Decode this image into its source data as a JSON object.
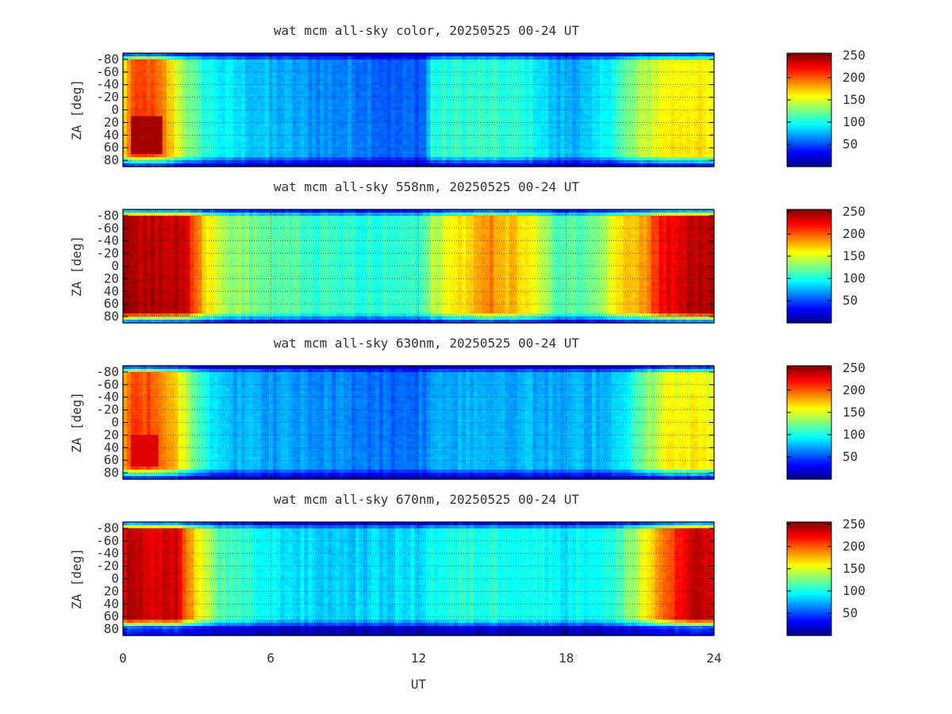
{
  "chart_data": [
    {
      "type": "heatmap",
      "title": "wat mcm all-sky color, 20250525 00-24 UT",
      "ylabel": "ZA [deg]",
      "xlim": [
        0,
        24
      ],
      "ylim": [
        -90,
        90
      ],
      "yticks": [
        "-80",
        "-60",
        "-40",
        "-20",
        "0",
        "20",
        "40",
        "60",
        "80"
      ],
      "grid": true,
      "colorbar": {
        "range": [
          0,
          255
        ],
        "ticks": [
          "50",
          "100",
          "150",
          "200",
          "250"
        ],
        "colormap": "jet"
      },
      "profile": {
        "ut": [
          0,
          0.3,
          1,
          1.7,
          2.3,
          3,
          4,
          6,
          8,
          10,
          11,
          12.3,
          12.5,
          13.5,
          15,
          16.5,
          17.5,
          19,
          20,
          21,
          22,
          23,
          24
        ],
        "intensity": [
          160,
          205,
          215,
          190,
          150,
          115,
          95,
          80,
          70,
          65,
          55,
          60,
          105,
          110,
          110,
          105,
          80,
          80,
          110,
          140,
          165,
          170,
          160
        ]
      },
      "za_profile": [
        {
          "za": -90,
          "factor": 0.12
        },
        {
          "za": -85,
          "factor": 0.45
        },
        {
          "za": -78,
          "factor": 0.95
        },
        {
          "za": 72,
          "factor": 1.0
        },
        {
          "za": 80,
          "factor": 0.6
        },
        {
          "za": 90,
          "factor": 0.12
        }
      ],
      "hotspot": {
        "ut_range": [
          0.3,
          1.6
        ],
        "za_range": [
          10,
          72
        ],
        "intensity": 245
      }
    },
    {
      "type": "heatmap",
      "title": "wat mcm all-sky 558nm, 20250525 00-24 UT",
      "ylabel": "ZA [deg]",
      "xlim": [
        0,
        24
      ],
      "ylim": [
        -90,
        90
      ],
      "yticks": [
        "-80",
        "-60",
        "-40",
        "-20",
        "0",
        "20",
        "40",
        "60",
        "80"
      ],
      "grid": true,
      "colorbar": {
        "range": [
          0,
          255
        ],
        "ticks": [
          "50",
          "100",
          "150",
          "200",
          "250"
        ],
        "colormap": "jet"
      },
      "profile": {
        "ut": [
          0,
          2.5,
          3.2,
          4,
          6,
          8,
          10,
          12,
          12.3,
          12.5,
          14,
          15,
          16.5,
          17.5,
          19,
          20.2,
          21.2,
          21.8,
          23,
          24
        ],
        "intensity": [
          245,
          245,
          180,
          140,
          120,
          110,
          105,
          110,
          115,
          140,
          175,
          190,
          165,
          120,
          120,
          175,
          185,
          225,
          240,
          245
        ]
      },
      "za_profile": [
        {
          "za": -90,
          "factor": 0.15
        },
        {
          "za": -85,
          "factor": 0.5
        },
        {
          "za": -78,
          "factor": 0.98
        },
        {
          "za": 74,
          "factor": 1.0
        },
        {
          "za": 82,
          "factor": 0.6
        },
        {
          "za": 90,
          "factor": 0.15
        }
      ]
    },
    {
      "type": "heatmap",
      "title": "wat mcm all-sky 630nm, 20250525 00-24 UT",
      "ylabel": "ZA [deg]",
      "xlim": [
        0,
        24
      ],
      "ylim": [
        -90,
        90
      ],
      "yticks": [
        "-80",
        "-60",
        "-40",
        "-20",
        "0",
        "20",
        "40",
        "60",
        "80"
      ],
      "grid": true,
      "colorbar": {
        "range": [
          0,
          255
        ],
        "ticks": [
          "50",
          "100",
          "150",
          "200",
          "250"
        ],
        "colormap": "jet"
      },
      "profile": {
        "ut": [
          0,
          0.5,
          1.2,
          2,
          2.6,
          3.5,
          4.5,
          6,
          8,
          10,
          11,
          12.2,
          13,
          14,
          16,
          18,
          20,
          21,
          22,
          23,
          24
        ],
        "intensity": [
          185,
          215,
          210,
          185,
          145,
          100,
          80,
          75,
          70,
          65,
          60,
          65,
          80,
          80,
          80,
          75,
          85,
          120,
          160,
          165,
          160
        ]
      },
      "za_profile": [
        {
          "za": -90,
          "factor": 0.12
        },
        {
          "za": -85,
          "factor": 0.45
        },
        {
          "za": -78,
          "factor": 0.95
        },
        {
          "za": 72,
          "factor": 1.0
        },
        {
          "za": 80,
          "factor": 0.6
        },
        {
          "za": 90,
          "factor": 0.12
        }
      ],
      "hotspot": {
        "ut_range": [
          0.4,
          1.5
        ],
        "za_range": [
          20,
          70
        ],
        "intensity": 230
      }
    },
    {
      "type": "heatmap",
      "title": "wat mcm all-sky 670nm, 20250525 00-24 UT",
      "ylabel": "ZA [deg]",
      "xlabel": "UT",
      "xlim": [
        0,
        24
      ],
      "ylim": [
        -90,
        90
      ],
      "yticks": [
        "-80",
        "-60",
        "-40",
        "-20",
        "0",
        "20",
        "40",
        "60",
        "80"
      ],
      "xticks": [
        "0",
        "6",
        "12",
        "18",
        "24"
      ],
      "grid": true,
      "colorbar": {
        "range": [
          0,
          255
        ],
        "ticks": [
          "50",
          "100",
          "150",
          "200",
          "250"
        ],
        "colormap": "jet"
      },
      "profile": {
        "ut": [
          0,
          2.2,
          3,
          4,
          6,
          8,
          10,
          12,
          12.5,
          14,
          16,
          18,
          20,
          21,
          22,
          23,
          24
        ],
        "intensity": [
          240,
          235,
          165,
          115,
          95,
          85,
          85,
          90,
          100,
          105,
          105,
          95,
          105,
          150,
          200,
          235,
          240
        ]
      },
      "za_profile": [
        {
          "za": -90,
          "factor": 0.15
        },
        {
          "za": -85,
          "factor": 0.5
        },
        {
          "za": -78,
          "factor": 0.98
        },
        {
          "za": 64,
          "factor": 1.0
        },
        {
          "za": 72,
          "factor": 0.6
        },
        {
          "za": 78,
          "factor": 0.2
        },
        {
          "za": 90,
          "factor": 0.12
        }
      ]
    }
  ]
}
